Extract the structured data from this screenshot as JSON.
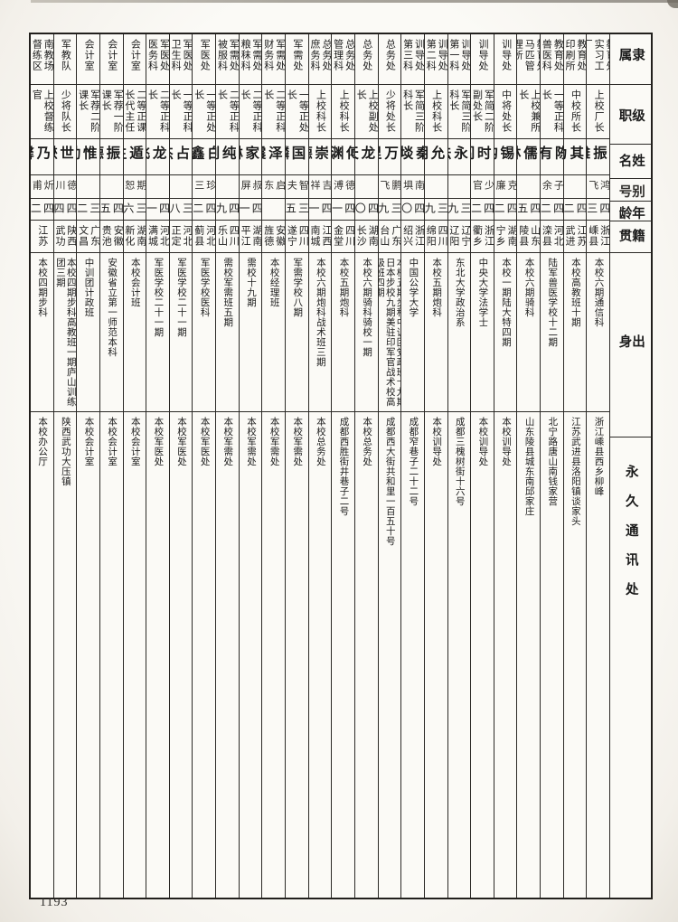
{
  "page": {
    "number": "1193"
  },
  "table": {
    "row_headers": [
      "隶属",
      "级职",
      "姓名",
      "别号",
      "年龄",
      "籍贯",
      "出身",
      "永久通讯处"
    ],
    "columns": [
      {
        "affiliation": "教育处实习工厂",
        "rank": "上校厂长",
        "name": "任振雄",
        "alias": "鸿飞",
        "age": "四三",
        "origin": "浙江嵊县",
        "background": "本校六期通信科",
        "address": "浙江嵊县西乡柳峰"
      },
      {
        "affiliation": "教育处印刷所",
        "rank": "中校所长",
        "name": "谈其为",
        "alias": "",
        "age": "四二",
        "origin": "江苏武进",
        "background": "本校高教班十期",
        "address": "江苏武进县洛阳镇谈家头"
      },
      {
        "affiliation": "教育处兽医科",
        "rank": "一等正科长",
        "name": "陈有",
        "alias": "子余",
        "age": "四二",
        "origin": "河北滦县",
        "background": "陆军兽医学校十二期",
        "address": "北宁路唐山南钱家营"
      },
      {
        "affiliation": "教育处马匹管理所",
        "rank": "上校兼所长",
        "name": "邱儒林",
        "alias": "",
        "age": "四五",
        "origin": "山东陵县",
        "background": "本校六期骑科",
        "address": "山东陵县城东南邱家庄"
      },
      {
        "affiliation": "训导处",
        "rank": "中将处长",
        "name": "王锡钧",
        "alias": "克廉",
        "age": "四二",
        "origin": "湖南宁乡",
        "background": "本校一期陆大特四期",
        "address": "本校训导处"
      },
      {
        "affiliation": "训导处",
        "rank": "军简二阶副处长",
        "name": "杜时阎",
        "alias": "少官",
        "age": "四二",
        "origin": "浙江衢乡",
        "background": "中央大学法学士",
        "address": "本校训导处"
      },
      {
        "affiliation": "训导处第一科",
        "rank": "军简三阶科长",
        "name": "印永法",
        "alias": "",
        "age": "三九",
        "origin": "辽宁辽阳",
        "background": "东北大学政治系",
        "address": "成都三槐树街十六号"
      },
      {
        "affiliation": "训导处第二科",
        "rank": "上校科长",
        "name": "袁允明",
        "alias": "",
        "age": "三九",
        "origin": "四川绵阳",
        "background": "本校五期炮科",
        "address": "本校训导处"
      },
      {
        "affiliation": "训导处第三科",
        "rank": "军简三阶科长",
        "name": "秦埮",
        "alias": "南埧",
        "age": "四〇",
        "origin": "浙江绍兴",
        "background": "中国公学大学",
        "address": "成都窄巷子二十二号"
      },
      {
        "affiliation": "总务处",
        "rank": "少将处长",
        "name": "余万里",
        "alias": "鹏飞",
        "age": "三九",
        "origin": "广东台山",
        "background": "本校五期步科中训团党政班十九期日本步校九期美驻印军官战术校高级班四期",
        "address": "成都西大街共和里一百五十号"
      },
      {
        "affiliation": "总务处",
        "rank": "上校副处长",
        "name": "杨龙天",
        "alias": "",
        "age": "四〇",
        "origin": "湖南长沙",
        "background": "本校六期骑科骑校一期",
        "address": "本校总务处"
      },
      {
        "affiliation": "总务处管理科",
        "rank": "上校科长",
        "name": "傅渊",
        "alias": "德溥",
        "age": "四一",
        "origin": "四川金堂",
        "background": "本校五期炮科",
        "address": "成都西胜街井巷子二号"
      },
      {
        "affiliation": "总务处庶务科",
        "rank": "上校科长",
        "name": "李崇德",
        "alias": "吉祥",
        "age": "四一",
        "origin": "江西南城",
        "background": "本校六期炮科战术班三期",
        "address": "本校总务处"
      },
      {
        "affiliation": "军需处",
        "rank": "一等正处长",
        "name": "张国麟",
        "alias": "智夫",
        "age": "三五",
        "origin": "四川遂宁",
        "background": "军需学校八期",
        "address": "本校军需处"
      },
      {
        "affiliation": "军需处财务科",
        "rank": "二等正科长",
        "name": "江泽震",
        "alias": "启东",
        "age": "",
        "origin": "安徽旌德",
        "background": "本校经理班",
        "address": "本校军需处"
      },
      {
        "affiliation": "军需处粮秣科",
        "rank": "二等正科长",
        "name": "李家琳",
        "alias": "叔屏",
        "age": "四一",
        "origin": "湖南平江",
        "background": "需校十九期",
        "address": "本校军需处"
      },
      {
        "affiliation": "军需处被服科",
        "rank": "二等正科长",
        "name": "吴纯剑",
        "alias": "",
        "age": "四九",
        "origin": "四川乐山",
        "background": "需校军需班五期",
        "address": "本校军需处"
      },
      {
        "affiliation": "军医处",
        "rank": "一等正处长",
        "name": "白鑫",
        "alias": "珍三",
        "age": "四二",
        "origin": "河北蓟县",
        "background": "军医学校医科",
        "address": "本校军医处"
      },
      {
        "affiliation": "军医处卫生科",
        "rank": "一等正科长",
        "name": "李占杰",
        "alias": "",
        "age": "三八",
        "origin": "河北正定",
        "background": "军医学校二十一期",
        "address": "本校军医处"
      },
      {
        "affiliation": "军医处医务科",
        "rank": "二等正科长",
        "name": "边龙飞",
        "alias": "",
        "age": "四一",
        "origin": "河北满城",
        "background": "军医学校二十一期",
        "address": "本校军医处"
      },
      {
        "affiliation": "会计室",
        "rank": "二等正课长代主任",
        "name": "邹遁生",
        "alias": "期恕",
        "age": "三六",
        "origin": "湖南新化",
        "background": "本校会计班",
        "address": "本校会计室"
      },
      {
        "affiliation": "会计室",
        "rank": "军荐一阶课长",
        "name": "孙振德",
        "alias": "",
        "age": "四五",
        "origin": "安徽贵池",
        "background": "安徽省立第一师范本科",
        "address": "本校会计室"
      },
      {
        "affiliation": "会计室",
        "rank": "军荐二阶课长",
        "name": "云惟劭",
        "alias": "",
        "age": "三二",
        "origin": "广东文昌",
        "background": "中训团计政班",
        "address": "本校会计室"
      },
      {
        "affiliation": "军教队",
        "rank": "少将队长",
        "name": "刘世懋",
        "alias": "德川",
        "age": "四四",
        "origin": "陕西武功",
        "background": "本校四期步科高教班一期庐山训练团三期",
        "address": "陕西武功大压镇"
      },
      {
        "affiliation": "南教场督练区",
        "rank": "上校督练官",
        "name": "桂乃馨",
        "alias": "炘甫",
        "age": "四二",
        "origin": "江苏",
        "background": "本校四期步科",
        "address": "本校办公厅"
      }
    ]
  }
}
